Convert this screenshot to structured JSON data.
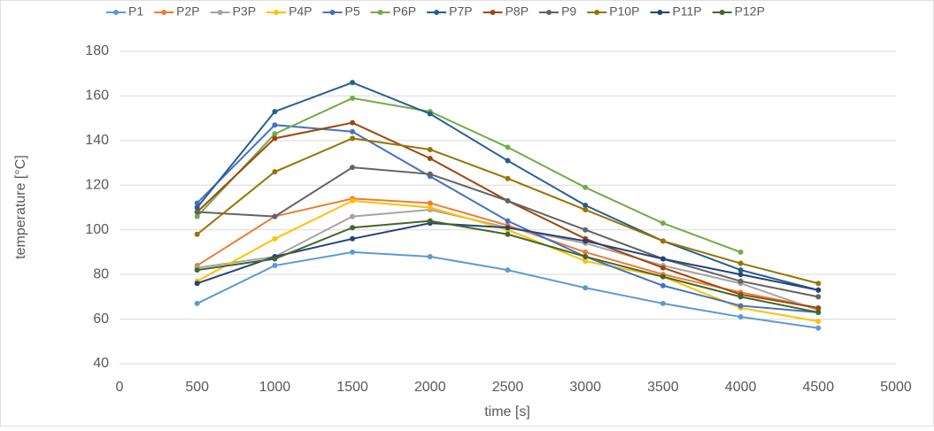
{
  "chart_data": {
    "type": "line",
    "x_label": "time [s]",
    "y_label": "temperature [°C]",
    "x": [
      500,
      1000,
      1500,
      2000,
      2500,
      3000,
      3500,
      4000,
      4500
    ],
    "xlim": [
      0,
      5000
    ],
    "xticks": [
      0,
      500,
      1000,
      1500,
      2000,
      2500,
      3000,
      3500,
      4000,
      4500,
      5000
    ],
    "ylim": [
      40,
      180
    ],
    "yticks": [
      40,
      60,
      80,
      100,
      120,
      140,
      160,
      180
    ],
    "grid": true,
    "legend": "top",
    "series": [
      {
        "name": "P1",
        "color": "#5b9bd5",
        "values": [
          67,
          84,
          90,
          88,
          82,
          74,
          67,
          61,
          56
        ]
      },
      {
        "name": "P2P",
        "color": "#ed7d31",
        "values": [
          84,
          106,
          114,
          112,
          102,
          90,
          80,
          72,
          65
        ]
      },
      {
        "name": "P3P",
        "color": "#a5a5a5",
        "values": [
          83,
          88,
          106,
          109,
          101,
          94,
          84,
          76,
          64
        ]
      },
      {
        "name": "P4P",
        "color": "#ffc000",
        "values": [
          77,
          96,
          113,
          110,
          100,
          86,
          79,
          65,
          59
        ]
      },
      {
        "name": "P5",
        "color": "#4472c4",
        "values": [
          112,
          147,
          144,
          124,
          104,
          88,
          75,
          66,
          63
        ]
      },
      {
        "name": "P6P",
        "color": "#70ad47",
        "values": [
          106,
          143,
          159,
          153,
          137,
          119,
          103,
          90,
          null
        ]
      },
      {
        "name": "P7P",
        "color": "#255e91",
        "values": [
          110,
          153,
          166,
          152,
          131,
          111,
          95,
          82,
          73
        ]
      },
      {
        "name": "P8P",
        "color": "#9e480e",
        "values": [
          108,
          141,
          148,
          132,
          113,
          96,
          83,
          71,
          65
        ]
      },
      {
        "name": "P9",
        "color": "#636363",
        "values": [
          108,
          106,
          128,
          125,
          113,
          100,
          87,
          77,
          70
        ]
      },
      {
        "name": "P10P",
        "color": "#997300",
        "values": [
          98,
          126,
          141,
          136,
          123,
          109,
          95,
          85,
          76
        ]
      },
      {
        "name": "P11P",
        "color": "#264478",
        "values": [
          76,
          88,
          96,
          103,
          101,
          95,
          87,
          80,
          73
        ]
      },
      {
        "name": "P12P",
        "color": "#43682b",
        "values": [
          82,
          87,
          101,
          104,
          98,
          88,
          79,
          70,
          63
        ]
      }
    ]
  }
}
